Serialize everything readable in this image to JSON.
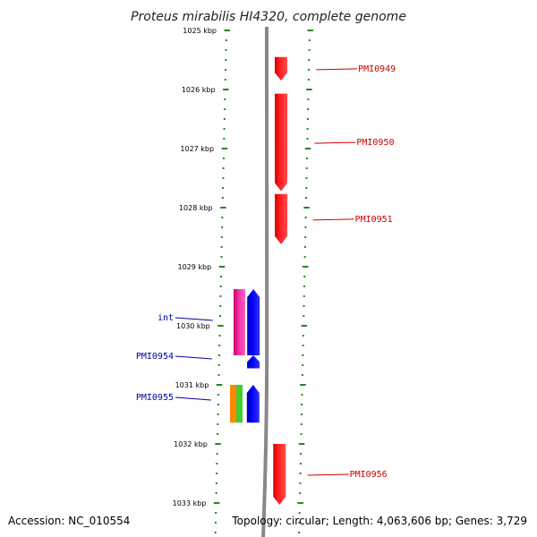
{
  "title": "Proteus mirabilis HI4320, complete genome",
  "accession": "Accession: NC_010554",
  "topology": "Topology: circular; Length: 4,063,606 bp; Genes: 3,729",
  "ticks": [
    {
      "kbp": 1025,
      "label": "1025 kbp"
    },
    {
      "kbp": 1026,
      "label": "1026 kbp"
    },
    {
      "kbp": 1027,
      "label": "1027 kbp"
    },
    {
      "kbp": 1028,
      "label": "1028 kbp"
    },
    {
      "kbp": 1029,
      "label": "1029 kbp"
    },
    {
      "kbp": 1030,
      "label": "1030 kbp"
    },
    {
      "kbp": 1031,
      "label": "1031 kbp"
    },
    {
      "kbp": 1032,
      "label": "1032 kbp"
    },
    {
      "kbp": 1033,
      "label": "1033 kbp"
    }
  ],
  "genes": [
    {
      "label": "PMI0949",
      "start_kbp": 1025.45,
      "end_kbp": 1025.85,
      "strand": "forward",
      "color": "#ff0000",
      "side": "right"
    },
    {
      "label": "PMI0950",
      "start_kbp": 1026.07,
      "end_kbp": 1027.72,
      "strand": "forward",
      "color": "#ff0000",
      "side": "right"
    },
    {
      "label": "PMI0951",
      "start_kbp": 1027.77,
      "end_kbp": 1028.62,
      "strand": "forward",
      "color": "#ff0000",
      "side": "right"
    },
    {
      "label": "int",
      "start_kbp": 1029.38,
      "end_kbp": 1030.5,
      "strand": "reverse",
      "color": "#0000ff",
      "side": "left"
    },
    {
      "label": "PMI0954",
      "start_kbp": 1030.5,
      "end_kbp": 1030.72,
      "strand": "reverse",
      "color": "#0000ff",
      "side": "left"
    },
    {
      "label": "PMI0955",
      "start_kbp": 1031.0,
      "end_kbp": 1031.64,
      "strand": "reverse",
      "color": "#0000ff",
      "side": "left"
    },
    {
      "label": "PMI0956",
      "start_kbp": 1032.0,
      "end_kbp": 1033.03,
      "strand": "forward",
      "color": "#ff0000",
      "side": "right"
    }
  ],
  "features": [
    {
      "start_kbp": 1029.38,
      "end_kbp": 1030.5,
      "color": "#ff33aa"
    },
    {
      "start_kbp": 1031.0,
      "end_kbp": 1031.64,
      "color": "#ff8800"
    },
    {
      "start_kbp": 1031.0,
      "end_kbp": 1031.64,
      "color": "#44cc33"
    }
  ],
  "colors": {
    "forward_gene": "#ff0000",
    "reverse_gene": "#0000ff",
    "tick_marks": "#228822",
    "backbone": "#888888",
    "forward_label": "#cc0000",
    "reverse_label": "#000099"
  }
}
